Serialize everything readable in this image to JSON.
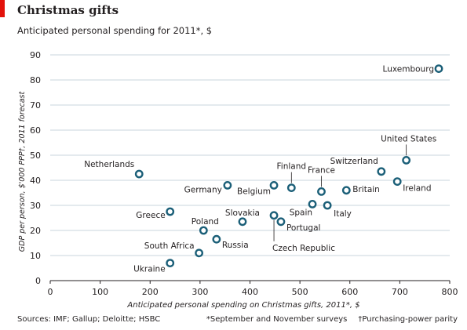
{
  "header": {
    "title": "Christmas gifts",
    "subtitle": "Anticipated personal spending for 2011*, $"
  },
  "footer": {
    "sources": "Sources: IMF; Gallup; Deloitte; HSBC",
    "note_survey": "*September and November surveys",
    "note_ppp": "†Purchasing-power parity"
  },
  "colors": {
    "marker_stroke": "#1b5f78",
    "gridline": "#c9d5dc",
    "axis": "#231f20",
    "accent_red": "#e3120b"
  },
  "chart_data": {
    "type": "scatter",
    "title": "Christmas gifts",
    "subtitle": "Anticipated personal spending for 2011*, $",
    "xlabel": "Anticipated personal spending on Christmas gifts, 2011*, $",
    "ylabel": "GDP per person, $'000 PPP†, 2011 forecast",
    "xlim": [
      0,
      800
    ],
    "ylim": [
      0,
      90
    ],
    "xticks": [
      0,
      100,
      200,
      300,
      400,
      500,
      600,
      700,
      800
    ],
    "yticks": [
      0,
      10,
      20,
      30,
      40,
      50,
      60,
      70,
      80,
      90
    ],
    "grid": "horizontal",
    "points": [
      {
        "label": "Luxembourg",
        "x": 778,
        "y": 84.5
      },
      {
        "label": "United States",
        "x": 713,
        "y": 48
      },
      {
        "label": "Switzerland",
        "x": 663,
        "y": 43.5
      },
      {
        "label": "Ireland",
        "x": 695,
        "y": 39.5
      },
      {
        "label": "Netherlands",
        "x": 178,
        "y": 42.5
      },
      {
        "label": "Finland",
        "x": 483,
        "y": 37
      },
      {
        "label": "France",
        "x": 543,
        "y": 35.5
      },
      {
        "label": "Britain",
        "x": 593,
        "y": 36
      },
      {
        "label": "Germany",
        "x": 355,
        "y": 38
      },
      {
        "label": "Belgium",
        "x": 448,
        "y": 38
      },
      {
        "label": "Spain",
        "x": 525,
        "y": 30.5
      },
      {
        "label": "Italy",
        "x": 555,
        "y": 30
      },
      {
        "label": "Greece",
        "x": 240,
        "y": 27.5
      },
      {
        "label": "Slovakia",
        "x": 385,
        "y": 23.5
      },
      {
        "label": "Czech Republic",
        "x": 448,
        "y": 26
      },
      {
        "label": "Portugal",
        "x": 462,
        "y": 23.5
      },
      {
        "label": "Poland",
        "x": 307,
        "y": 20
      },
      {
        "label": "Russia",
        "x": 333,
        "y": 16.5
      },
      {
        "label": "South Africa",
        "x": 298,
        "y": 11
      },
      {
        "label": "Ukraine",
        "x": 240,
        "y": 7
      }
    ]
  }
}
